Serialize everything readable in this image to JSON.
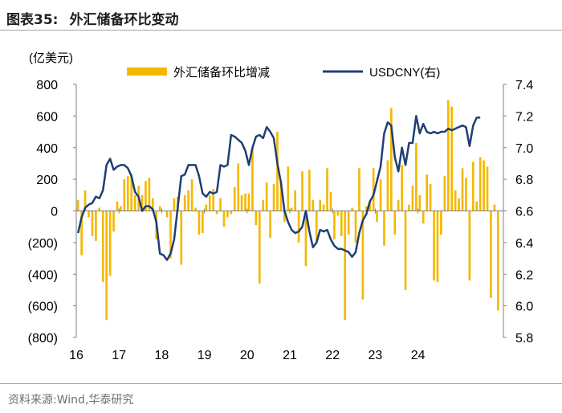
{
  "header": {
    "figure_no": "图表35:",
    "title": "外汇储备环比变动"
  },
  "source": "资料来源:Wind,华泰研究",
  "colors": {
    "bar": "#F5B800",
    "line": "#1F3F73",
    "axis": "#808080"
  },
  "chart_data": {
    "type": "bar+line",
    "y_left_label": "(亿美元)",
    "y_left_ticks": [
      "800",
      "600",
      "400",
      "200",
      "0",
      "(200)",
      "(400)",
      "(600)",
      "(800)"
    ],
    "y_left_lim": [
      -800,
      800
    ],
    "y_right_ticks": [
      "7.4",
      "7.2",
      "7.0",
      "6.8",
      "6.6",
      "6.4",
      "6.2",
      "6.0",
      "5.8"
    ],
    "y_right_lim": [
      5.8,
      7.4
    ],
    "x_ticks": [
      "16",
      "17",
      "18",
      "19",
      "20",
      "21",
      "22",
      "23",
      "24"
    ],
    "x_start": "2016-01",
    "legend": "top",
    "series": [
      {
        "name": "外汇储备环比增减",
        "axis": "left",
        "type": "bar",
        "values": [
          70,
          -280,
          130,
          -40,
          -160,
          -190,
          20,
          -450,
          -690,
          -410,
          -130,
          60,
          30,
          200,
          220,
          230,
          100,
          160,
          100,
          190,
          210,
          80,
          -180,
          30,
          0,
          -40,
          -300,
          80,
          90,
          -340,
          100,
          130,
          200,
          20,
          -150,
          -140,
          40,
          100,
          140,
          -20,
          80,
          -100,
          -40,
          -20,
          150,
          300,
          100,
          110,
          110,
          400,
          -90,
          -460,
          70,
          180,
          -170,
          170,
          500,
          190,
          -70,
          280,
          20,
          130,
          -200,
          250,
          -350,
          260,
          70,
          -190,
          70,
          40,
          270,
          120,
          -180,
          -30,
          -160,
          -690,
          -150,
          20,
          -200,
          270,
          -560,
          30,
          60,
          270,
          -70,
          200,
          -220,
          320,
          650,
          -150,
          70,
          290,
          -500,
          40,
          160,
          430,
          100,
          -80,
          230,
          170,
          -440,
          -450,
          -150,
          220,
          700,
          660,
          130,
          80,
          270,
          210,
          -440,
          310,
          60,
          340,
          320,
          280,
          -550,
          40,
          -630,
          0
        ]
      },
      {
        "name": "USDCNY(右)",
        "axis": "right",
        "type": "line",
        "values": [
          6.46,
          6.56,
          6.62,
          6.64,
          6.65,
          6.69,
          6.68,
          6.73,
          6.89,
          6.93,
          6.86,
          6.88,
          6.89,
          6.89,
          6.87,
          6.82,
          6.72,
          6.69,
          6.6,
          6.63,
          6.63,
          6.61,
          6.53,
          6.33,
          6.32,
          6.29,
          6.33,
          6.42,
          6.62,
          6.82,
          6.83,
          6.89,
          6.89,
          6.89,
          6.82,
          6.71,
          6.69,
          6.72,
          6.71,
          6.72,
          6.89,
          6.88,
          6.89,
          7.08,
          7.07,
          7.05,
          7.03,
          6.98,
          6.89,
          7.0,
          7.07,
          7.08,
          7.06,
          7.13,
          7.1,
          7.06,
          6.9,
          6.78,
          6.6,
          6.53,
          6.48,
          6.46,
          6.47,
          6.5,
          6.6,
          6.47,
          6.37,
          6.4,
          6.48,
          6.47,
          6.48,
          6.42,
          6.38,
          6.36,
          6.36,
          6.35,
          6.34,
          6.31,
          6.34,
          6.46,
          6.54,
          6.58,
          6.66,
          6.7,
          6.79,
          6.88,
          7.09,
          7.16,
          7.14,
          6.94,
          6.85,
          7.0,
          6.89,
          7.03,
          7.03,
          7.2,
          7.09,
          7.15,
          7.1,
          7.09,
          7.1,
          7.09,
          7.1,
          7.1,
          7.12,
          7.11,
          7.12,
          7.13,
          7.14,
          7.13,
          7.01,
          7.14,
          7.19,
          7.19
        ]
      }
    ]
  }
}
